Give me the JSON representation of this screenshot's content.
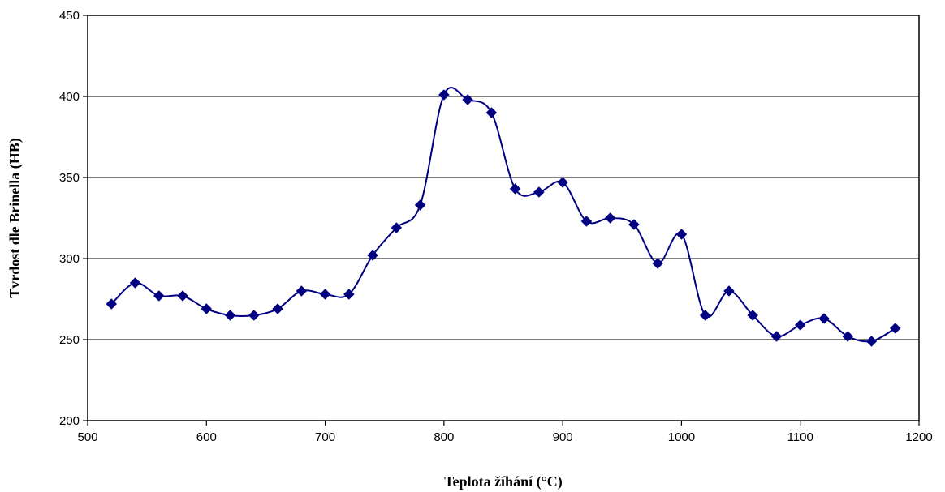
{
  "chart_data": {
    "type": "line",
    "title": "",
    "xlabel": "Teplota žíhání (°C)",
    "ylabel": "Tvrdost dle Brinella (HB)",
    "xlim": [
      500,
      1200
    ],
    "ylim": [
      200,
      450
    ],
    "x_ticks": [
      500,
      600,
      700,
      800,
      900,
      1000,
      1100,
      1200
    ],
    "y_ticks": [
      200,
      250,
      300,
      350,
      400,
      450
    ],
    "x_tick_labels": [
      "500",
      "600",
      "700",
      "800",
      "900",
      "1000",
      "1100",
      "1200"
    ],
    "y_tick_labels": [
      "200",
      "250",
      "300",
      "350",
      "400",
      "450"
    ],
    "grid": "horizontal",
    "legend": "none",
    "smooth": true,
    "marker": "diamond",
    "color": "#000080",
    "series": [
      {
        "x": [
          520,
          540,
          560,
          580,
          600,
          620,
          640,
          660,
          680,
          700,
          720,
          740,
          760,
          780,
          800,
          820,
          840,
          860,
          880,
          900,
          920,
          940,
          960,
          980,
          1000,
          1020,
          1040,
          1060,
          1080,
          1100,
          1120,
          1140,
          1160,
          1180
        ],
        "y": [
          272,
          285,
          277,
          277,
          269,
          265,
          265,
          269,
          280,
          278,
          278,
          302,
          319,
          333,
          401,
          398,
          390,
          343,
          341,
          347,
          323,
          325,
          321,
          297,
          315,
          265,
          280,
          265,
          252,
          259,
          263,
          252,
          249,
          257
        ]
      }
    ]
  }
}
